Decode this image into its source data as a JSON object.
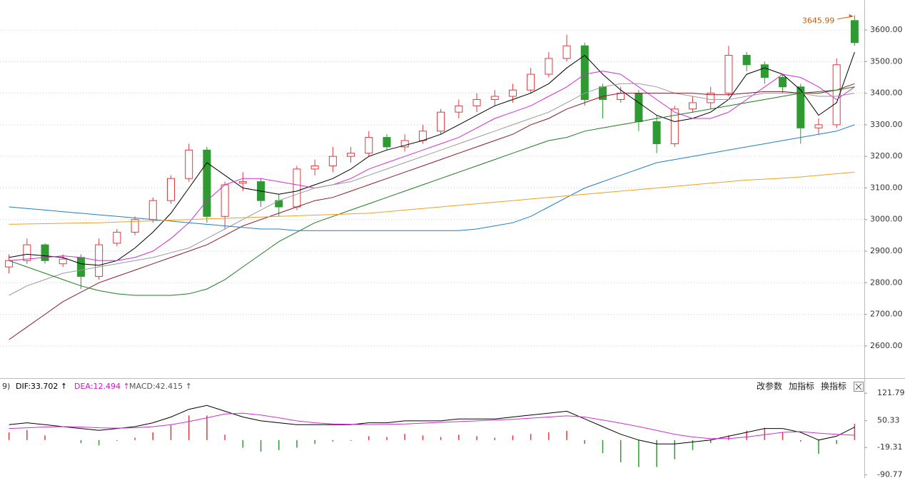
{
  "chart_data": [
    {
      "type": "candlestick",
      "ylim": [
        2498,
        3695
      ],
      "yticks": [
        {
          "value": 2600,
          "label": "2600.00"
        },
        {
          "value": 2700,
          "label": "2700.00"
        },
        {
          "value": 2800,
          "label": "2800.00"
        },
        {
          "value": 2900,
          "label": "2900.00"
        },
        {
          "value": 3000,
          "label": "3000.00"
        },
        {
          "value": 3100,
          "label": "3100.00"
        },
        {
          "value": 3200,
          "label": "3200.00"
        },
        {
          "value": 3300,
          "label": "3300.00"
        },
        {
          "value": 3400,
          "label": "3400.00"
        },
        {
          "value": 3500,
          "label": "3500.00"
        },
        {
          "value": 3600,
          "label": "3600.00"
        }
      ],
      "grid": true,
      "up_color": "#e0393e",
      "down_color": "#2f9a32",
      "ohlc": {
        "open": [
          2850,
          2870,
          2920,
          2860,
          2880,
          2820,
          2925,
          2960,
          3000,
          3060,
          3130,
          3220,
          3010,
          3115,
          3120,
          3060,
          3040,
          3160,
          3170,
          3200,
          3210,
          3260,
          3230,
          3250,
          3280,
          3340,
          3360,
          3380,
          3390,
          3410,
          3460,
          3510,
          3550,
          3420,
          3380,
          3400,
          3310,
          3240,
          3350,
          3370,
          3400,
          3520,
          3490,
          3450,
          3420,
          3290,
          3300,
          3630
        ],
        "high": [
          2890,
          2940,
          2925,
          2890,
          2890,
          2940,
          2970,
          3010,
          3070,
          3140,
          3240,
          3230,
          3120,
          3150,
          3130,
          3080,
          3170,
          3190,
          3230,
          3230,
          3280,
          3270,
          3270,
          3300,
          3350,
          3380,
          3400,
          3410,
          3430,
          3480,
          3530,
          3585,
          3560,
          3430,
          3420,
          3410,
          3330,
          3360,
          3390,
          3420,
          3550,
          3530,
          3500,
          3460,
          3430,
          3320,
          3510,
          3645.99
        ],
        "low": [
          2830,
          2860,
          2860,
          2850,
          2780,
          2810,
          2915,
          2950,
          2990,
          3050,
          3120,
          2990,
          2970,
          3090,
          3040,
          3010,
          3030,
          3140,
          3150,
          3180,
          3200,
          3220,
          3215,
          3240,
          3270,
          3320,
          3340,
          3360,
          3370,
          3400,
          3450,
          3500,
          3360,
          3320,
          3370,
          3280,
          3210,
          3230,
          3340,
          3350,
          3390,
          3470,
          3430,
          3400,
          3240,
          3270,
          3290,
          3550
        ],
        "close": [
          2870,
          2920,
          2870,
          2875,
          2820,
          2920,
          2960,
          3000,
          3060,
          3130,
          3220,
          3010,
          3110,
          3120,
          3060,
          3040,
          3160,
          3170,
          3200,
          3210,
          3260,
          3230,
          3250,
          3280,
          3340,
          3360,
          3380,
          3390,
          3410,
          3460,
          3510,
          3550,
          3380,
          3380,
          3400,
          3310,
          3240,
          3350,
          3370,
          3400,
          3520,
          3490,
          3450,
          3420,
          3290,
          3300,
          3490,
          3560
        ]
      },
      "ma_lines": [
        {
          "color": "#000000",
          "values": [
            2880,
            2890,
            2885,
            2880,
            2860,
            2855,
            2870,
            2910,
            2960,
            3020,
            3100,
            3180,
            3140,
            3100,
            3090,
            3080,
            3090,
            3110,
            3130,
            3160,
            3200,
            3220,
            3235,
            3250,
            3270,
            3300,
            3330,
            3360,
            3380,
            3400,
            3430,
            3480,
            3520,
            3460,
            3410,
            3370,
            3330,
            3310,
            3320,
            3340,
            3380,
            3460,
            3480,
            3460,
            3410,
            3330,
            3370,
            3530
          ]
        },
        {
          "color": "#d12ed1",
          "values": [
            2870,
            2875,
            2880,
            2885,
            2880,
            2870,
            2870,
            2880,
            2900,
            2940,
            2990,
            3060,
            3110,
            3130,
            3130,
            3120,
            3110,
            3100,
            3110,
            3130,
            3160,
            3180,
            3200,
            3220,
            3240,
            3260,
            3290,
            3320,
            3340,
            3360,
            3390,
            3420,
            3460,
            3470,
            3460,
            3420,
            3380,
            3340,
            3320,
            3320,
            3340,
            3380,
            3420,
            3460,
            3450,
            3420,
            3380,
            3420
          ]
        },
        {
          "color": "#9a9a9a",
          "values": [
            2760,
            2790,
            2810,
            2830,
            2840,
            2850,
            2860,
            2870,
            2880,
            2895,
            2910,
            2940,
            2970,
            3000,
            3030,
            3060,
            3080,
            3100,
            3110,
            3120,
            3140,
            3160,
            3180,
            3200,
            3220,
            3240,
            3260,
            3280,
            3300,
            3320,
            3340,
            3370,
            3400,
            3420,
            3430,
            3430,
            3420,
            3400,
            3390,
            3380,
            3380,
            3390,
            3400,
            3400,
            3400,
            3390,
            3390,
            3400
          ]
        },
        {
          "color": "#8b1a2b",
          "values": [
            2620,
            2660,
            2700,
            2740,
            2770,
            2800,
            2820,
            2840,
            2860,
            2880,
            2900,
            2920,
            2950,
            2980,
            3000,
            3020,
            3040,
            3060,
            3070,
            3090,
            3110,
            3130,
            3150,
            3170,
            3190,
            3210,
            3230,
            3250,
            3270,
            3300,
            3320,
            3350,
            3370,
            3390,
            3400,
            3400,
            3400,
            3400,
            3400,
            3395,
            3395,
            3400,
            3405,
            3405,
            3400,
            3400,
            3410,
            3430
          ]
        },
        {
          "color": "#1e7d1e",
          "values": [
            2870,
            2850,
            2830,
            2810,
            2790,
            2775,
            2765,
            2760,
            2760,
            2760,
            2765,
            2780,
            2810,
            2850,
            2890,
            2930,
            2960,
            2990,
            3010,
            3030,
            3050,
            3070,
            3090,
            3110,
            3130,
            3150,
            3170,
            3190,
            3210,
            3230,
            3250,
            3260,
            3280,
            3290,
            3300,
            3310,
            3320,
            3330,
            3340,
            3350,
            3360,
            3370,
            3380,
            3390,
            3400,
            3405,
            3410,
            3420
          ]
        },
        {
          "color": "#1f7fc4",
          "values": [
            3040,
            3035,
            3030,
            3025,
            3020,
            3015,
            3010,
            3005,
            3000,
            2995,
            2990,
            2985,
            2980,
            2975,
            2970,
            2970,
            2965,
            2965,
            2965,
            2965,
            2965,
            2965,
            2965,
            2965,
            2965,
            2965,
            2970,
            2980,
            2990,
            3010,
            3040,
            3070,
            3100,
            3120,
            3140,
            3160,
            3180,
            3190,
            3200,
            3210,
            3220,
            3230,
            3240,
            3250,
            3260,
            3270,
            3280,
            3300
          ]
        },
        {
          "color": "#f0a020",
          "values": [
            2985,
            2986,
            2987,
            2988,
            2989,
            2990,
            2992,
            2994,
            2996,
            2998,
            3000,
            3002,
            3004,
            3006,
            3008,
            3010,
            3012,
            3014,
            3016,
            3018,
            3020,
            3025,
            3030,
            3035,
            3040,
            3045,
            3050,
            3055,
            3060,
            3065,
            3070,
            3075,
            3080,
            3085,
            3090,
            3095,
            3100,
            3105,
            3110,
            3115,
            3120,
            3125,
            3128,
            3131,
            3135,
            3140,
            3145,
            3150
          ]
        }
      ]
    },
    {
      "type": "macd",
      "ylim": [
        -95,
        124
      ],
      "yticks": [
        121.79,
        50.33,
        -19.31,
        -90.77
      ],
      "header": [
        "9)",
        "DIF:33.702 ↑",
        "DEA:12.494 ↑",
        "MACD:42.415 ↑"
      ],
      "buttons": [
        "改参数",
        "加指标",
        "换指标"
      ],
      "dif": {
        "color": "#000000",
        "values": [
          40,
          45,
          40,
          35,
          30,
          25,
          30,
          35,
          45,
          60,
          80,
          90,
          75,
          60,
          50,
          45,
          40,
          40,
          40,
          40,
          45,
          45,
          50,
          50,
          50,
          55,
          55,
          55,
          60,
          65,
          70,
          75,
          55,
          35,
          15,
          0,
          -10,
          -10,
          -5,
          0,
          10,
          20,
          30,
          30,
          20,
          0,
          10,
          33.702
        ]
      },
      "dea": {
        "color": "#d12ed1",
        "values": [
          30,
          32,
          34,
          35,
          34,
          32,
          31,
          32,
          35,
          40,
          48,
          58,
          68,
          70,
          65,
          58,
          50,
          45,
          42,
          41,
          40,
          41,
          42,
          44,
          46,
          48,
          50,
          52,
          54,
          57,
          60,
          63,
          60,
          52,
          44,
          35,
          25,
          15,
          8,
          4,
          4,
          8,
          14,
          20,
          22,
          18,
          15,
          12.494
        ]
      },
      "hist": {
        "up_color": "#e0393e",
        "down_color": "#2f9a32",
        "values": [
          20,
          26,
          12,
          0,
          -8,
          -14,
          -2,
          6,
          20,
          40,
          64,
          64,
          14,
          -20,
          -30,
          -26,
          -20,
          -10,
          -4,
          -2,
          10,
          8,
          16,
          12,
          8,
          14,
          10,
          6,
          12,
          16,
          20,
          24,
          -10,
          -34,
          -58,
          -70,
          -70,
          -50,
          -26,
          -8,
          12,
          24,
          32,
          20,
          -4,
          -36,
          -10,
          42.415
        ]
      }
    }
  ]
}
